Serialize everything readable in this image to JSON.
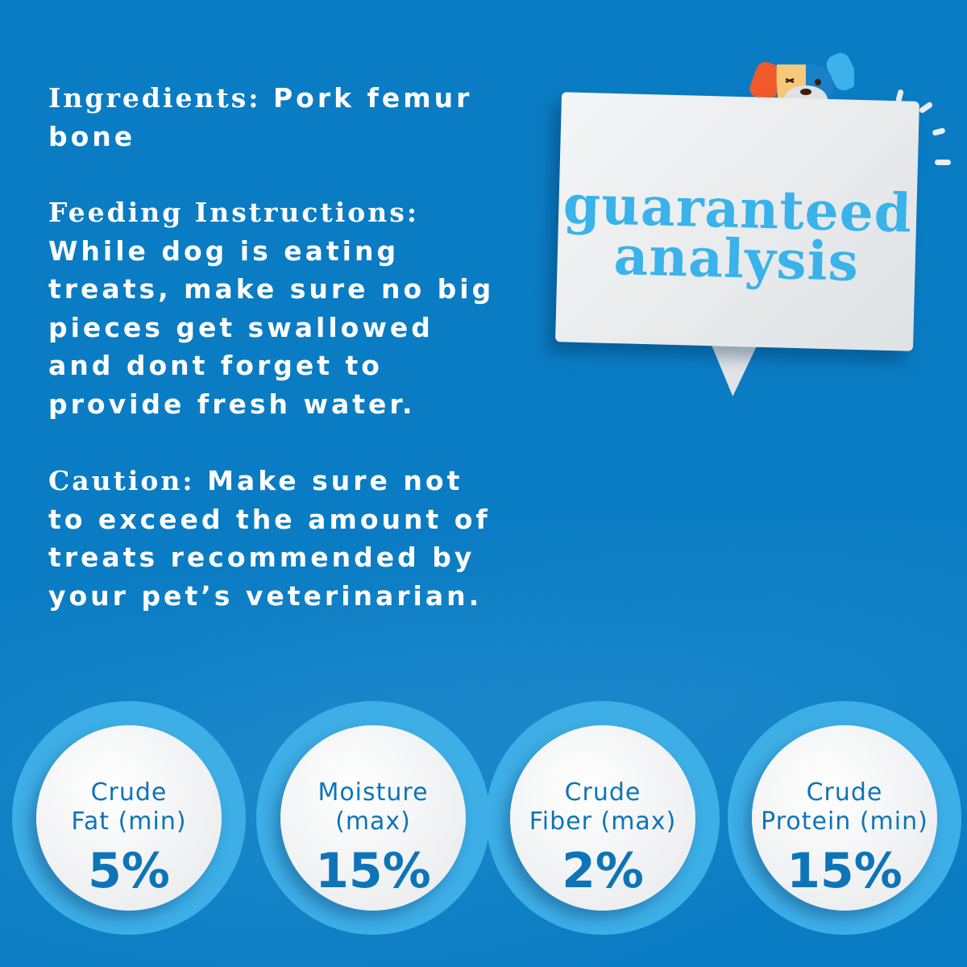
{
  "colors": {
    "background": "#0a7cc3",
    "accent_light": "#3daee6",
    "text_blue": "#0e74b8",
    "white": "#ffffff"
  },
  "ingredients": {
    "label": "Ingredients:",
    "lines": [
      " Pork femur",
      "bone"
    ]
  },
  "feeding": {
    "label": "Feeding Instructions:",
    "lines": [
      "While dog is eating",
      "treats, make sure no big",
      "pieces get swallowed",
      "and dont forget to",
      "provide fresh water."
    ]
  },
  "caution": {
    "label": "Caution:",
    "lines": [
      " Make sure not",
      "to exceed the amount of",
      "treats recommended by",
      "your pet’s veterinarian."
    ]
  },
  "bubble": {
    "line1": "guaranteed",
    "line2": "analysis",
    "icon": "dog-mascot-icon"
  },
  "analysis": [
    {
      "label1": "Crude",
      "label2": "Fat (min)",
      "value": "5%"
    },
    {
      "label1": "Moisture",
      "label2": "(max)",
      "value": "15%"
    },
    {
      "label1": "Crude",
      "label2": "Fiber (max)",
      "value": "2%"
    },
    {
      "label1": "Crude",
      "label2": "Protein (min)",
      "value": "15%"
    }
  ]
}
